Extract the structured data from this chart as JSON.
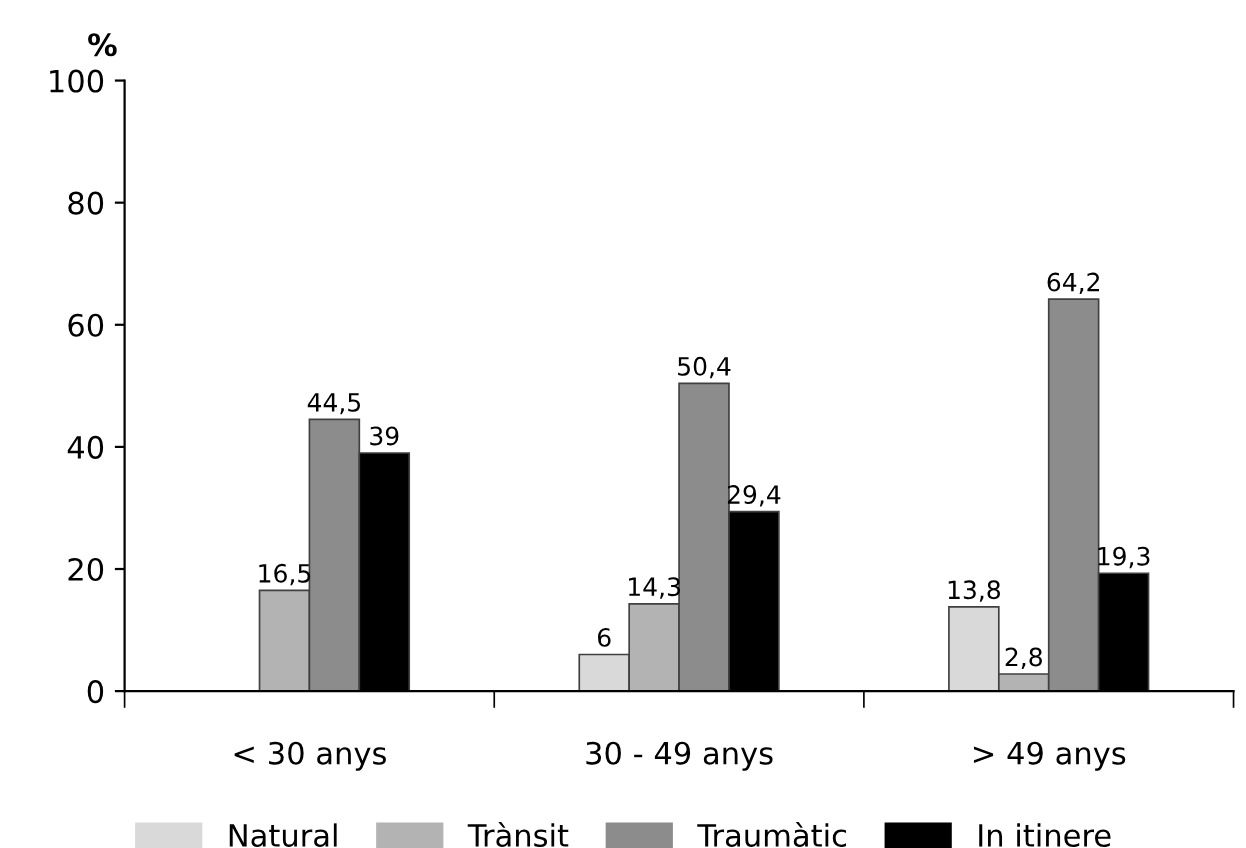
{
  "chart_data": {
    "type": "bar",
    "ylabel": "%",
    "categories": [
      "< 30 anys",
      "30 - 49 anys",
      "> 49 anys"
    ],
    "series": [
      {
        "name": "Natural",
        "color": "#d9d9d9",
        "values": [
          null,
          6,
          13.8
        ],
        "value_labels": [
          null,
          "6",
          "13,8"
        ]
      },
      {
        "name": "Trànsit",
        "color": "#b3b3b3",
        "values": [
          16.5,
          14.3,
          2.8
        ],
        "value_labels": [
          "16,5",
          "14,3",
          "2,8"
        ]
      },
      {
        "name": "Traumàtic",
        "color": "#8c8c8c",
        "values": [
          44.5,
          50.4,
          64.2
        ],
        "value_labels": [
          "44,5",
          "50,4",
          "64,2"
        ]
      },
      {
        "name": "In itinere",
        "color": "#000000",
        "values": [
          39,
          29.4,
          19.3
        ],
        "value_labels": [
          "39",
          "29,4",
          "19,3"
        ]
      }
    ],
    "ylim": [
      0,
      100
    ],
    "yticks": [
      0,
      20,
      40,
      60,
      80,
      100
    ],
    "grid": false,
    "legend": "bottom"
  }
}
